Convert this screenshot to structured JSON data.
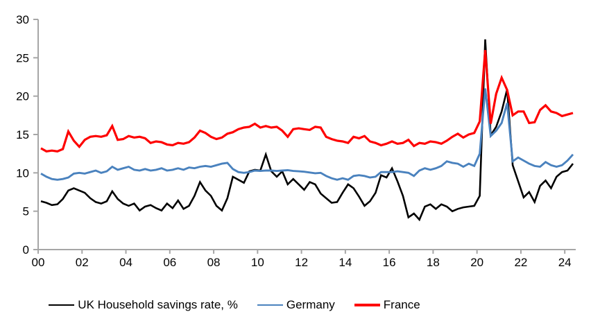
{
  "chart_data": {
    "type": "line",
    "title": "",
    "x_frequency": "quarterly",
    "x_start": "2000 Q1",
    "x_end": "2024 Q2",
    "x_tick_labels": [
      "00",
      "02",
      "04",
      "06",
      "08",
      "10",
      "12",
      "14",
      "16",
      "18",
      "20",
      "22",
      "24"
    ],
    "y_tick_labels": [
      "0",
      "5",
      "10",
      "15",
      "20",
      "25",
      "30"
    ],
    "ylim": [
      0,
      30
    ],
    "grid": false,
    "legend_position": "bottom",
    "axis_color": "#a6a6a6",
    "tick_label_color": "#000000",
    "series": [
      {
        "name": "UK Household savings rate, %",
        "color": "#000000",
        "stroke_width": 2.6,
        "values": [
          6.3,
          6.1,
          5.8,
          5.9,
          6.6,
          7.7,
          8.0,
          7.7,
          7.4,
          6.7,
          6.2,
          6.0,
          6.3,
          7.6,
          6.6,
          6.0,
          5.7,
          6.0,
          5.1,
          5.6,
          5.8,
          5.4,
          5.1,
          6.0,
          5.4,
          6.4,
          5.3,
          5.7,
          7.0,
          8.8,
          7.7,
          7.0,
          5.7,
          5.1,
          6.7,
          9.5,
          9.1,
          8.7,
          10.2,
          10.4,
          10.3,
          12.4,
          10.2,
          9.5,
          10.2,
          8.5,
          9.2,
          8.5,
          7.8,
          8.8,
          8.5,
          7.3,
          6.7,
          6.1,
          6.2,
          7.4,
          8.5,
          8.0,
          6.9,
          5.7,
          6.3,
          7.4,
          9.7,
          9.4,
          10.6,
          8.9,
          7.0,
          4.2,
          4.7,
          3.9,
          5.6,
          5.9,
          5.3,
          5.9,
          5.6,
          5.0,
          5.3,
          5.5,
          5.6,
          5.7,
          7.0,
          27.4,
          14.9,
          16.0,
          18.0,
          20.9,
          11.0,
          8.9,
          6.8,
          7.5,
          6.2,
          8.3,
          9.0,
          8.0,
          9.5,
          10.1,
          10.3,
          11.2
        ]
      },
      {
        "name": "Germany",
        "color": "#4a82be",
        "stroke_width": 2.9,
        "values": [
          9.9,
          9.5,
          9.2,
          9.1,
          9.2,
          9.4,
          9.9,
          10.0,
          9.9,
          10.1,
          10.3,
          10.0,
          10.2,
          10.8,
          10.4,
          10.6,
          10.8,
          10.4,
          10.3,
          10.5,
          10.3,
          10.4,
          10.6,
          10.3,
          10.4,
          10.6,
          10.4,
          10.7,
          10.6,
          10.8,
          10.9,
          10.8,
          11.0,
          11.2,
          11.3,
          10.5,
          10.1,
          10.0,
          10.1,
          10.3,
          10.25,
          10.3,
          10.3,
          10.25,
          10.3,
          10.35,
          10.25,
          10.2,
          10.15,
          10.05,
          9.95,
          10.0,
          9.6,
          9.3,
          9.1,
          9.3,
          9.1,
          9.6,
          9.7,
          9.6,
          9.4,
          9.5,
          10.1,
          10.1,
          10.1,
          10.2,
          10.1,
          10.0,
          9.6,
          10.3,
          10.6,
          10.4,
          10.6,
          10.9,
          11.5,
          11.3,
          11.2,
          10.8,
          11.2,
          10.9,
          12.5,
          21.0,
          14.8,
          15.5,
          16.5,
          19.1,
          11.5,
          12.0,
          11.6,
          11.2,
          10.9,
          10.8,
          11.4,
          11.0,
          10.8,
          11.0,
          11.6,
          12.4
        ]
      },
      {
        "name": "France",
        "color": "#fe0000",
        "stroke_width": 3.2,
        "values": [
          13.2,
          12.8,
          12.9,
          12.8,
          13.1,
          15.4,
          14.2,
          13.4,
          14.3,
          14.7,
          14.8,
          14.7,
          14.9,
          16.1,
          14.3,
          14.4,
          14.8,
          14.6,
          14.7,
          14.5,
          13.9,
          14.1,
          14.0,
          13.7,
          13.6,
          13.9,
          13.8,
          14.0,
          14.6,
          15.5,
          15.2,
          14.7,
          14.4,
          14.6,
          15.1,
          15.3,
          15.7,
          15.9,
          16.0,
          16.4,
          15.9,
          16.1,
          15.9,
          16.0,
          15.5,
          14.7,
          15.7,
          15.8,
          15.7,
          15.6,
          16.0,
          15.9,
          14.7,
          14.4,
          14.2,
          14.1,
          13.9,
          14.7,
          14.5,
          14.8,
          14.1,
          13.9,
          13.6,
          13.8,
          14.1,
          13.8,
          13.9,
          14.3,
          13.5,
          13.9,
          13.8,
          14.1,
          14.0,
          13.8,
          14.2,
          14.7,
          15.1,
          14.6,
          15.0,
          15.2,
          16.7,
          26.0,
          16.4,
          20.3,
          22.4,
          20.8,
          17.5,
          18.0,
          18.0,
          16.5,
          16.6,
          18.2,
          18.8,
          18.0,
          17.8,
          17.4,
          17.6,
          17.8
        ]
      }
    ]
  }
}
